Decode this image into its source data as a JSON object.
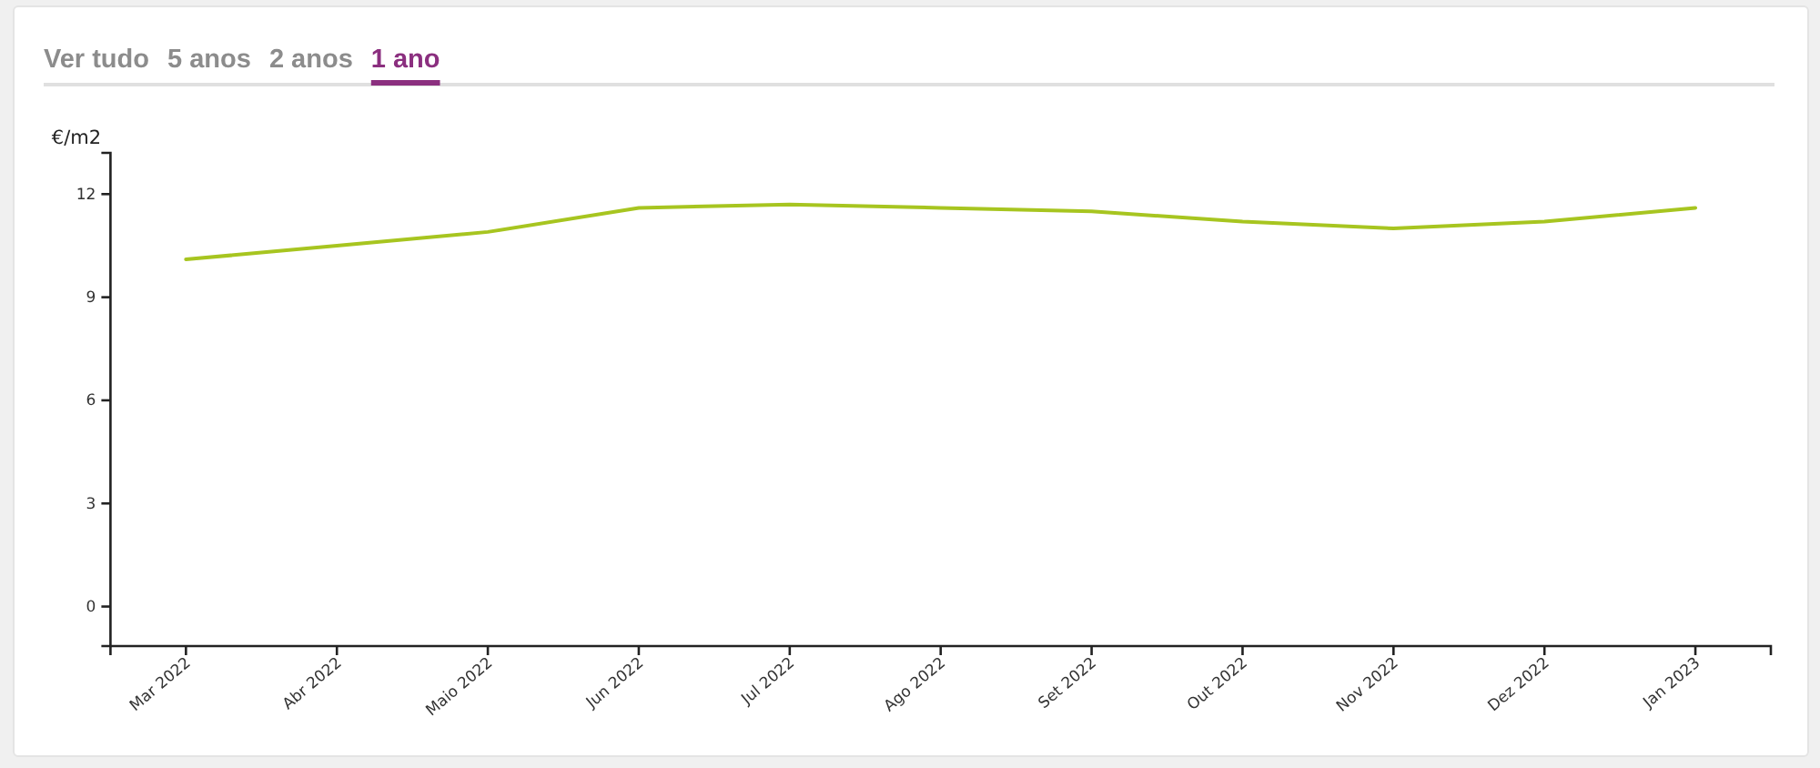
{
  "chart_data": {
    "type": "line",
    "annotations": [
      "Ver tudo",
      "5 anos",
      "2 anos",
      "1 ano"
    ],
    "ylabel": "€/m2",
    "categories": [
      "Mar 2022",
      "Abr 2022",
      "Maio 2022",
      "Jun 2022",
      "Jul 2022",
      "Ago 2022",
      "Set 2022",
      "Out 2022",
      "Nov 2022",
      "Dez 2022",
      "Jan 2023"
    ],
    "series": [
      {
        "color": "#a7c520",
        "values": [
          10.1,
          10.5,
          10.9,
          11.6,
          11.7,
          11.6,
          11.5,
          11.2,
          11.0,
          11.2,
          11.6
        ]
      }
    ],
    "ylim": [
      -1.15,
      13.2
    ],
    "yticks": [
      0,
      3,
      6,
      9,
      12
    ]
  }
}
